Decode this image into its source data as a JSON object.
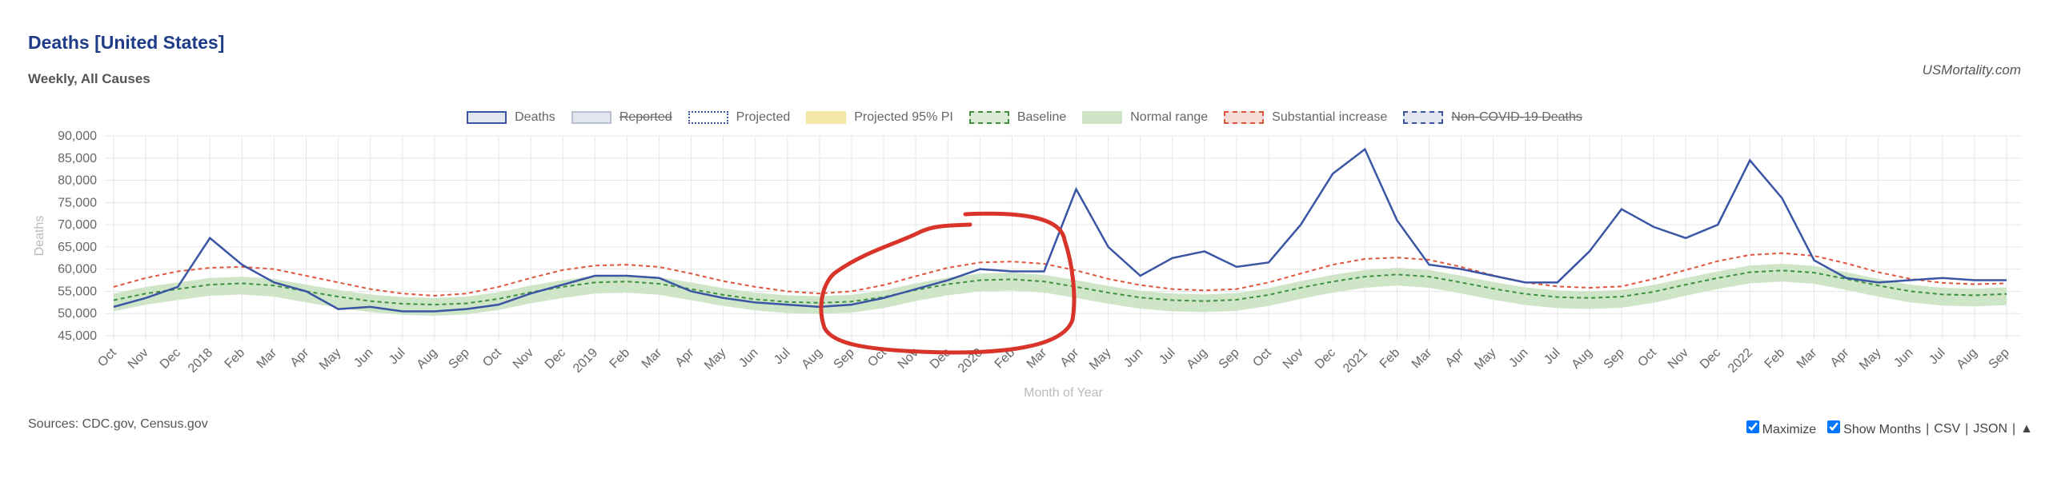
{
  "chart_data": {
    "type": "line",
    "title": "Deaths [United States]",
    "subtitle": "Weekly, All Causes",
    "source_site": "USMortality.com",
    "y_label": "Deaths",
    "x_label": "Month of Year",
    "sources": "Sources: CDC.gov, Census.gov",
    "controls": {
      "maximize": "Maximize",
      "show_months": "Show Months",
      "separator": "|",
      "csv": "CSV",
      "json": "JSON",
      "up": "▲"
    },
    "grid": true,
    "ylim": [
      45000,
      90000
    ],
    "yticks": [
      {
        "value": 45000,
        "label": "45,000"
      },
      {
        "value": 50000,
        "label": "50,000"
      },
      {
        "value": 55000,
        "label": "55,000"
      },
      {
        "value": 60000,
        "label": "60,000"
      },
      {
        "value": 65000,
        "label": "65,000"
      },
      {
        "value": 70000,
        "label": "70,000"
      },
      {
        "value": 75000,
        "label": "75,000"
      },
      {
        "value": 80000,
        "label": "80,000"
      },
      {
        "value": 85000,
        "label": "85,000"
      },
      {
        "value": 90000,
        "label": "90,000"
      }
    ],
    "categories": [
      "Oct",
      "Nov",
      "Dec",
      "2018",
      "Feb",
      "Mar",
      "Apr",
      "May",
      "Jun",
      "Jul",
      "Aug",
      "Sep",
      "Oct",
      "Nov",
      "Dec",
      "2019",
      "Feb",
      "Mar",
      "Apr",
      "May",
      "Jun",
      "Jul",
      "Aug",
      "Sep",
      "Oct",
      "Nov",
      "Dec",
      "2020",
      "Feb",
      "Mar",
      "Apr",
      "May",
      "Jun",
      "Jul",
      "Aug",
      "Sep",
      "Oct",
      "Nov",
      "Dec",
      "2021",
      "Feb",
      "Mar",
      "Apr",
      "May",
      "Jun",
      "Jul",
      "Aug",
      "Sep",
      "Oct",
      "Nov",
      "Dec",
      "2022",
      "Feb",
      "Mar",
      "Apr",
      "May",
      "Jun",
      "Jul",
      "Aug",
      "Sep"
    ],
    "series": [
      {
        "name": "Normal range",
        "kind": "band",
        "color": "#cfe5c8",
        "low": [
          50500,
          52000,
          53000,
          54000,
          54300,
          53800,
          52500,
          51300,
          50300,
          49700,
          49500,
          49800,
          50800,
          52300,
          53500,
          54500,
          54700,
          54200,
          53000,
          51700,
          50700,
          50100,
          49900,
          50200,
          51200,
          52800,
          54100,
          55000,
          55200,
          54700,
          53500,
          52200,
          51100,
          50500,
          50300,
          50600,
          51700,
          53300,
          54700,
          55800,
          56300,
          55800,
          54500,
          53100,
          51900,
          51200,
          51000,
          51300,
          52400,
          54000,
          55500,
          56800,
          57200,
          56700,
          55300,
          53800,
          52500,
          51800,
          51600,
          51900
        ],
        "high": [
          54500,
          56000,
          57000,
          58000,
          58300,
          57800,
          56500,
          55300,
          54300,
          53700,
          53500,
          53800,
          54800,
          56300,
          57500,
          58500,
          58700,
          58200,
          57000,
          55700,
          54700,
          54100,
          53900,
          54200,
          55200,
          56800,
          58100,
          59000,
          59200,
          58700,
          57500,
          56200,
          55100,
          54500,
          54300,
          54600,
          55700,
          57300,
          58700,
          59800,
          60300,
          59800,
          58500,
          57100,
          55900,
          55200,
          55000,
          55300,
          56400,
          58000,
          59500,
          60800,
          61200,
          60700,
          59300,
          57800,
          56500,
          55800,
          55600,
          55900
        ]
      },
      {
        "name": "Baseline",
        "kind": "dashed",
        "color": "#3f8f3f",
        "values": [
          53000,
          54500,
          55500,
          56500,
          56800,
          56300,
          55000,
          53800,
          52800,
          52200,
          52000,
          52300,
          53300,
          54800,
          56000,
          57000,
          57200,
          56700,
          55500,
          54200,
          53200,
          52600,
          52400,
          52700,
          53700,
          55300,
          56600,
          57500,
          57700,
          57200,
          56000,
          54700,
          53600,
          53000,
          52800,
          53100,
          54200,
          55800,
          57200,
          58300,
          58800,
          58300,
          57000,
          55600,
          54400,
          53700,
          53500,
          53800,
          54900,
          56500,
          58000,
          59300,
          59700,
          59200,
          57800,
          56300,
          55000,
          54300,
          54100,
          54400
        ]
      },
      {
        "name": "Substantial increase",
        "kind": "dashed",
        "color": "#e0553d",
        "values": [
          56000,
          58000,
          59500,
          60300,
          60500,
          60000,
          58500,
          57000,
          55500,
          54500,
          54000,
          54500,
          56000,
          58000,
          59800,
          60800,
          61000,
          60500,
          59000,
          57300,
          56000,
          55000,
          54500,
          55000,
          56400,
          58400,
          60300,
          61500,
          61700,
          61200,
          59700,
          57800,
          56400,
          55500,
          55200,
          55500,
          57000,
          59000,
          61000,
          62300,
          62600,
          62100,
          60500,
          58600,
          57000,
          56100,
          55800,
          56100,
          57800,
          59800,
          61800,
          63200,
          63600,
          63000,
          61300,
          59300,
          57800,
          56900,
          56600,
          56800
        ]
      },
      {
        "name": "Deaths",
        "kind": "solid",
        "color": "#3a55a4",
        "values": [
          51500,
          53500,
          56000,
          67000,
          61000,
          57000,
          55000,
          51000,
          51500,
          50500,
          50500,
          51000,
          52000,
          54500,
          56500,
          58500,
          58500,
          58000,
          55000,
          53500,
          52500,
          52000,
          51500,
          52000,
          53500,
          55500,
          57500,
          60000,
          59500,
          59500,
          78000,
          65000,
          58500,
          62500,
          64000,
          60500,
          61500,
          70000,
          81500,
          87000,
          71000,
          61000,
          60000,
          58500,
          57000,
          57000,
          64000,
          73500,
          69500,
          67000,
          70000,
          84500,
          76000,
          62000,
          58000,
          57000,
          57500,
          58000,
          57500,
          57500
        ]
      },
      {
        "name": "Reported",
        "kind": "hidden",
        "color": "#b8bfd0"
      },
      {
        "name": "Projected",
        "kind": "dotted",
        "color": "#3a55a4"
      },
      {
        "name": "Projected 95% PI",
        "kind": "fill",
        "color": "#f3e7a5"
      },
      {
        "name": "Non-COVID-19 Deaths",
        "kind": "hidden",
        "color": "#3a55a4"
      }
    ]
  }
}
